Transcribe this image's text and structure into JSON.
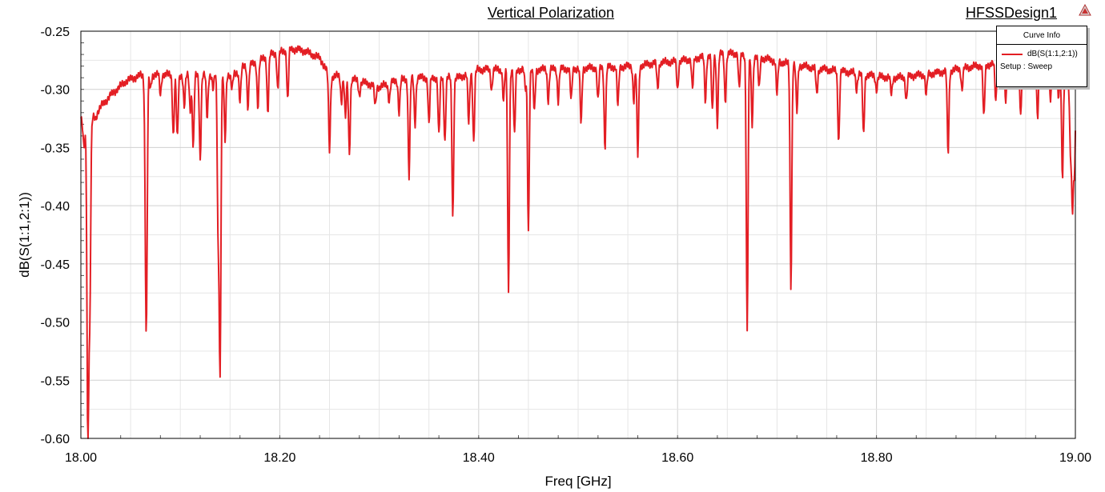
{
  "header": {
    "title": "Vertical Polarization",
    "design": "HFSSDesign1",
    "logo_icon": "ansys-triangle-icon"
  },
  "legend": {
    "title": "Curve Info",
    "series": "dB(S(1:1,2:1))",
    "setup": "Setup : Sweep"
  },
  "chart_data": {
    "type": "line",
    "xlabel": "Freq [GHz]",
    "ylabel": "dB(S(1:1,2:1))",
    "xlim": [
      18.0,
      19.0
    ],
    "ylim": [
      -0.6,
      -0.25
    ],
    "xticks": [
      "18.00",
      "18.20",
      "18.40",
      "18.60",
      "18.80",
      "19.00"
    ],
    "yticks": [
      "-0.25",
      "-0.30",
      "-0.35",
      "-0.40",
      "-0.45",
      "-0.50",
      "-0.55",
      "-0.60"
    ],
    "grid": true,
    "line_color": "#e31e24",
    "series": [
      {
        "name": "dB(S(1:1,2:1))",
        "baseline": [
          [
            18.0,
            -0.325
          ],
          [
            18.004,
            -0.335
          ],
          [
            18.008,
            -0.335
          ],
          [
            18.012,
            -0.325
          ],
          [
            18.02,
            -0.315
          ],
          [
            18.03,
            -0.305
          ],
          [
            18.045,
            -0.293
          ],
          [
            18.06,
            -0.288
          ],
          [
            18.08,
            -0.287
          ],
          [
            18.1,
            -0.288
          ],
          [
            18.12,
            -0.288
          ],
          [
            18.14,
            -0.287
          ],
          [
            18.155,
            -0.287
          ],
          [
            18.16,
            -0.283
          ],
          [
            18.165,
            -0.28
          ],
          [
            18.175,
            -0.278
          ],
          [
            18.19,
            -0.27
          ],
          [
            18.2,
            -0.268
          ],
          [
            18.21,
            -0.265
          ],
          [
            18.225,
            -0.267
          ],
          [
            18.24,
            -0.273
          ],
          [
            18.245,
            -0.28
          ],
          [
            18.25,
            -0.29
          ],
          [
            18.26,
            -0.288
          ],
          [
            18.28,
            -0.293
          ],
          [
            18.3,
            -0.298
          ],
          [
            18.32,
            -0.292
          ],
          [
            18.34,
            -0.29
          ],
          [
            18.36,
            -0.29
          ],
          [
            18.38,
            -0.29
          ],
          [
            18.4,
            -0.283
          ],
          [
            18.42,
            -0.283
          ],
          [
            18.46,
            -0.283
          ],
          [
            18.5,
            -0.282
          ],
          [
            18.53,
            -0.281
          ],
          [
            18.56,
            -0.28
          ],
          [
            18.58,
            -0.277
          ],
          [
            18.6,
            -0.276
          ],
          [
            18.62,
            -0.273
          ],
          [
            18.64,
            -0.27
          ],
          [
            18.66,
            -0.269
          ],
          [
            18.68,
            -0.272
          ],
          [
            18.7,
            -0.276
          ],
          [
            18.72,
            -0.279
          ],
          [
            18.74,
            -0.282
          ],
          [
            18.76,
            -0.284
          ],
          [
            18.78,
            -0.286
          ],
          [
            18.8,
            -0.289
          ],
          [
            18.82,
            -0.29
          ],
          [
            18.84,
            -0.288
          ],
          [
            18.86,
            -0.286
          ],
          [
            18.88,
            -0.283
          ],
          [
            18.9,
            -0.28
          ],
          [
            18.92,
            -0.278
          ],
          [
            18.94,
            -0.276
          ],
          [
            18.96,
            -0.276
          ],
          [
            18.98,
            -0.28
          ],
          [
            19.0,
            -0.3
          ]
        ],
        "dips": [
          [
            18.003,
            -0.35
          ],
          [
            18.007,
            -0.6
          ],
          [
            18.009,
            -0.49
          ],
          [
            18.015,
            -0.325
          ],
          [
            18.065,
            -0.37
          ],
          [
            18.066,
            -0.462
          ],
          [
            18.07,
            -0.3
          ],
          [
            18.08,
            -0.305
          ],
          [
            18.093,
            -0.34
          ],
          [
            18.097,
            -0.343
          ],
          [
            18.104,
            -0.315
          ],
          [
            18.11,
            -0.318
          ],
          [
            18.113,
            -0.35
          ],
          [
            18.12,
            -0.36
          ],
          [
            18.127,
            -0.325
          ],
          [
            18.133,
            -0.3
          ],
          [
            18.138,
            -0.42
          ],
          [
            18.14,
            -0.54
          ],
          [
            18.145,
            -0.345
          ],
          [
            18.152,
            -0.3
          ],
          [
            18.16,
            -0.31
          ],
          [
            18.168,
            -0.315
          ],
          [
            18.178,
            -0.315
          ],
          [
            18.188,
            -0.32
          ],
          [
            18.198,
            -0.3
          ],
          [
            18.208,
            -0.31
          ],
          [
            18.25,
            -0.352
          ],
          [
            18.262,
            -0.31
          ],
          [
            18.266,
            -0.325
          ],
          [
            18.27,
            -0.355
          ],
          [
            18.28,
            -0.305
          ],
          [
            18.296,
            -0.315
          ],
          [
            18.31,
            -0.31
          ],
          [
            18.32,
            -0.32
          ],
          [
            18.33,
            -0.375
          ],
          [
            18.336,
            -0.33
          ],
          [
            18.35,
            -0.33
          ],
          [
            18.36,
            -0.34
          ],
          [
            18.366,
            -0.345
          ],
          [
            18.374,
            -0.41
          ],
          [
            18.39,
            -0.33
          ],
          [
            18.395,
            -0.345
          ],
          [
            18.413,
            -0.3
          ],
          [
            18.425,
            -0.31
          ],
          [
            18.43,
            -0.475
          ],
          [
            18.436,
            -0.34
          ],
          [
            18.447,
            -0.3
          ],
          [
            18.45,
            -0.422
          ],
          [
            18.456,
            -0.32
          ],
          [
            18.47,
            -0.31
          ],
          [
            18.48,
            -0.31
          ],
          [
            18.493,
            -0.31
          ],
          [
            18.503,
            -0.33
          ],
          [
            18.52,
            -0.31
          ],
          [
            18.527,
            -0.35
          ],
          [
            18.54,
            -0.315
          ],
          [
            18.556,
            -0.31
          ],
          [
            18.56,
            -0.357
          ],
          [
            18.58,
            -0.3
          ],
          [
            18.6,
            -0.3
          ],
          [
            18.615,
            -0.3
          ],
          [
            18.628,
            -0.31
          ],
          [
            18.635,
            -0.32
          ],
          [
            18.64,
            -0.33
          ],
          [
            18.648,
            -0.31
          ],
          [
            18.662,
            -0.3
          ],
          [
            18.67,
            -0.51
          ],
          [
            18.675,
            -0.33
          ],
          [
            18.682,
            -0.3
          ],
          [
            18.7,
            -0.305
          ],
          [
            18.714,
            -0.47
          ],
          [
            18.72,
            -0.32
          ],
          [
            18.74,
            -0.305
          ],
          [
            18.762,
            -0.345
          ],
          [
            18.78,
            -0.3
          ],
          [
            18.787,
            -0.34
          ],
          [
            18.8,
            -0.3
          ],
          [
            18.815,
            -0.305
          ],
          [
            18.83,
            -0.31
          ],
          [
            18.85,
            -0.305
          ],
          [
            18.872,
            -0.355
          ],
          [
            18.886,
            -0.3
          ],
          [
            18.908,
            -0.325
          ],
          [
            18.92,
            -0.31
          ],
          [
            18.93,
            -0.31
          ],
          [
            18.945,
            -0.325
          ],
          [
            18.962,
            -0.325
          ],
          [
            18.975,
            -0.31
          ],
          [
            18.983,
            -0.308
          ],
          [
            18.987,
            -0.375
          ],
          [
            18.995,
            -0.35
          ],
          [
            18.997,
            -0.397
          ],
          [
            18.999,
            -0.37
          ]
        ]
      }
    ]
  }
}
